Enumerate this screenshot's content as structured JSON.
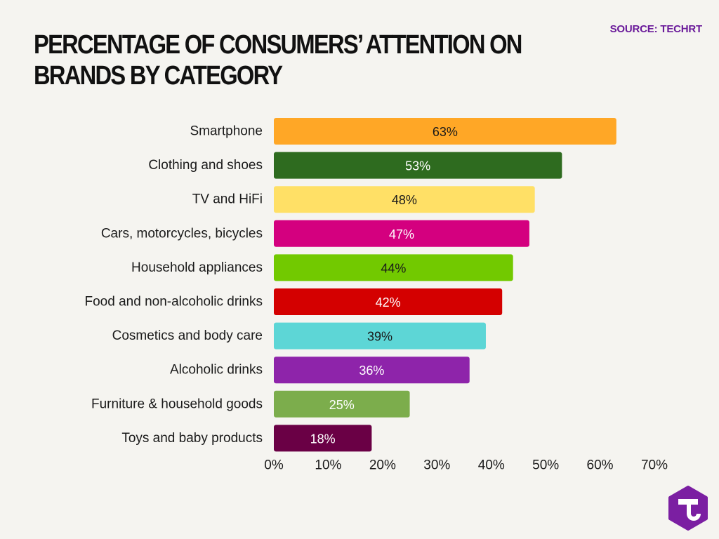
{
  "header": {
    "title": "PERCENTAGE OF CONSUMERS’ ATTENTION ON BRANDS BY CATEGORY",
    "source": "SOURCE: TECHRT"
  },
  "chart_data": {
    "type": "bar",
    "orientation": "horizontal",
    "title": "PERCENTAGE OF CONSUMERS’ ATTENTION ON BRANDS BY CATEGORY",
    "xlabel": "",
    "ylabel": "",
    "xlim": [
      0,
      70
    ],
    "x_ticks": [
      "0%",
      "10%",
      "20%",
      "30%",
      "40%",
      "50%",
      "60%",
      "70%"
    ],
    "grid": false,
    "legend": "none",
    "categories": [
      "Smartphone",
      "Clothing and shoes",
      "TV and HiFi",
      "Cars, motorcycles, bicycles",
      "Household appliances",
      "Food and non-alcoholic drinks",
      "Cosmetics and body care",
      "Alcoholic drinks",
      "Furniture & household goods",
      "Toys and baby products"
    ],
    "values": [
      63,
      53,
      48,
      47,
      44,
      42,
      39,
      36,
      25,
      18
    ],
    "data_labels": [
      "63%",
      "53%",
      "48%",
      "47%",
      "44%",
      "42%",
      "39%",
      "36%",
      "25%",
      "18%"
    ],
    "bar_colors": [
      "#ffa726",
      "#2e6b1f",
      "#ffe066",
      "#d4007f",
      "#72c900",
      "#d40000",
      "#5dd6d6",
      "#8e24aa",
      "#7cad4c",
      "#6a0045"
    ],
    "label_colors": [
      "#1a1a1a",
      "#ffffff",
      "#1a1a1a",
      "#ffffff",
      "#1a1a1a",
      "#ffffff",
      "#1a1a1a",
      "#ffffff",
      "#ffffff",
      "#ffffff"
    ]
  },
  "logo": {
    "icon": "techrt-hexagon-logo-icon",
    "color": "#7b1fa2"
  }
}
